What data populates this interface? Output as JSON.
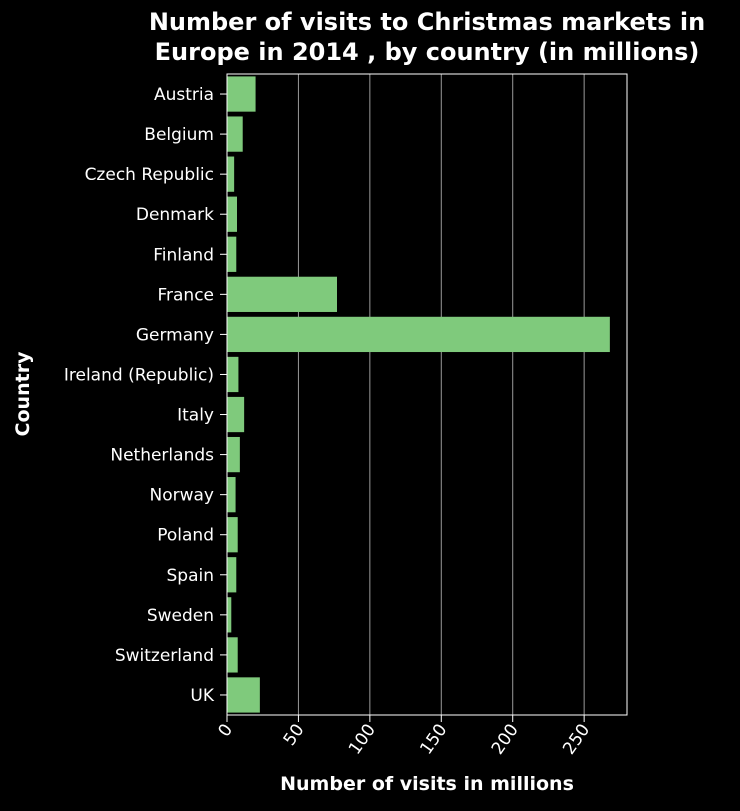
{
  "chart_data": {
    "type": "bar",
    "orientation": "horizontal",
    "title": "Number of visits to Christmas markets in Europe in 2014 , by country (in millions)",
    "title_lines": [
      "Number of visits to Christmas markets in",
      "Europe in 2014 , by country (in millions)"
    ],
    "xlabel": "Number of visits in millions",
    "ylabel": "Country",
    "categories": [
      "Austria",
      "Belgium",
      "Czech Republic",
      "Denmark",
      "Finland",
      "France",
      "Germany",
      "Ireland (Republic)",
      "Italy",
      "Netherlands",
      "Norway",
      "Poland",
      "Spain",
      "Sweden",
      "Switzerland",
      "UK"
    ],
    "values": [
      20,
      11,
      5,
      7,
      6.5,
      77,
      268,
      8,
      12,
      9,
      6,
      7.5,
      6.5,
      3,
      7.5,
      23
    ],
    "xlim": [
      0,
      280
    ],
    "xticks": [
      0,
      50,
      100,
      150,
      200,
      250
    ],
    "xtick_labels": [
      "0",
      "50",
      "100",
      "150",
      "200",
      "250"
    ],
    "x_grid": true,
    "bar_color": "#7fca7c",
    "background_color": "#000000",
    "text_color": "#ffffff",
    "grid_color": "#9a9a9a"
  }
}
